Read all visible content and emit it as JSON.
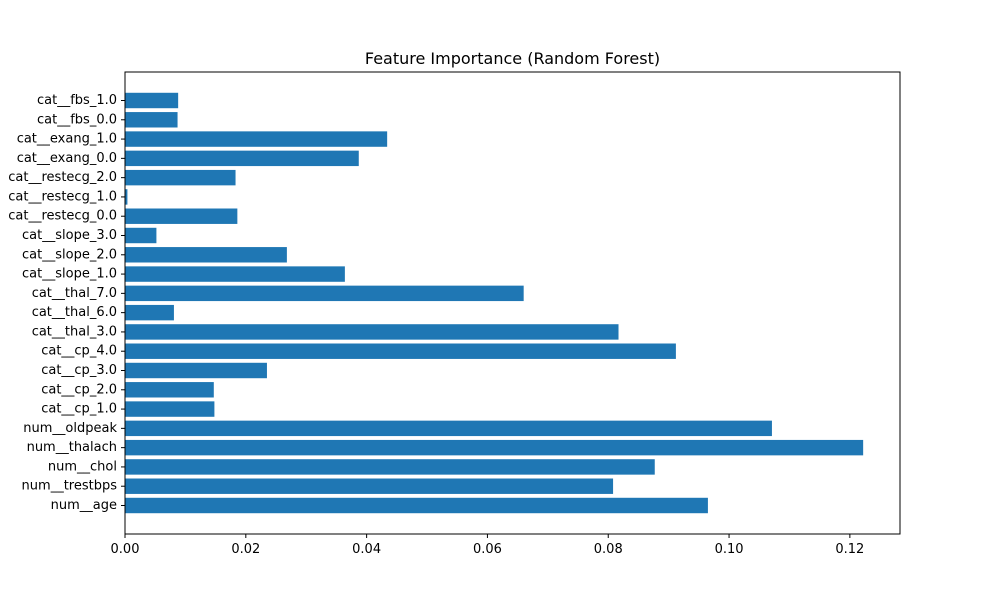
{
  "chart_data": {
    "type": "bar",
    "orientation": "horizontal",
    "title": "Feature Importance (Random Forest)",
    "xlabel": "",
    "ylabel": "",
    "xlim": [
      0.0,
      0.1283
    ],
    "grid": false,
    "bar_color": "#1f77b4",
    "x_ticks": [
      0.0,
      0.02,
      0.04,
      0.06,
      0.08,
      0.1,
      0.12
    ],
    "x_tick_labels": [
      "0.00",
      "0.02",
      "0.04",
      "0.06",
      "0.08",
      "0.10",
      "0.12"
    ],
    "categories": [
      "num__age",
      "num__trestbps",
      "num__chol",
      "num__thalach",
      "num__oldpeak",
      "cat__cp_1.0",
      "cat__cp_2.0",
      "cat__cp_3.0",
      "cat__cp_4.0",
      "cat__thal_3.0",
      "cat__thal_6.0",
      "cat__thal_7.0",
      "cat__slope_1.0",
      "cat__slope_2.0",
      "cat__slope_3.0",
      "cat__restecg_0.0",
      "cat__restecg_1.0",
      "cat__restecg_2.0",
      "cat__exang_0.0",
      "cat__exang_1.0",
      "cat__fbs_0.0",
      "cat__fbs_1.0"
    ],
    "values": [
      0.0965,
      0.0808,
      0.0877,
      0.1222,
      0.1071,
      0.0148,
      0.0147,
      0.0235,
      0.0912,
      0.0817,
      0.0081,
      0.066,
      0.0364,
      0.0268,
      0.0052,
      0.0186,
      0.0004,
      0.0183,
      0.0387,
      0.0434,
      0.0087,
      0.0088
    ]
  }
}
